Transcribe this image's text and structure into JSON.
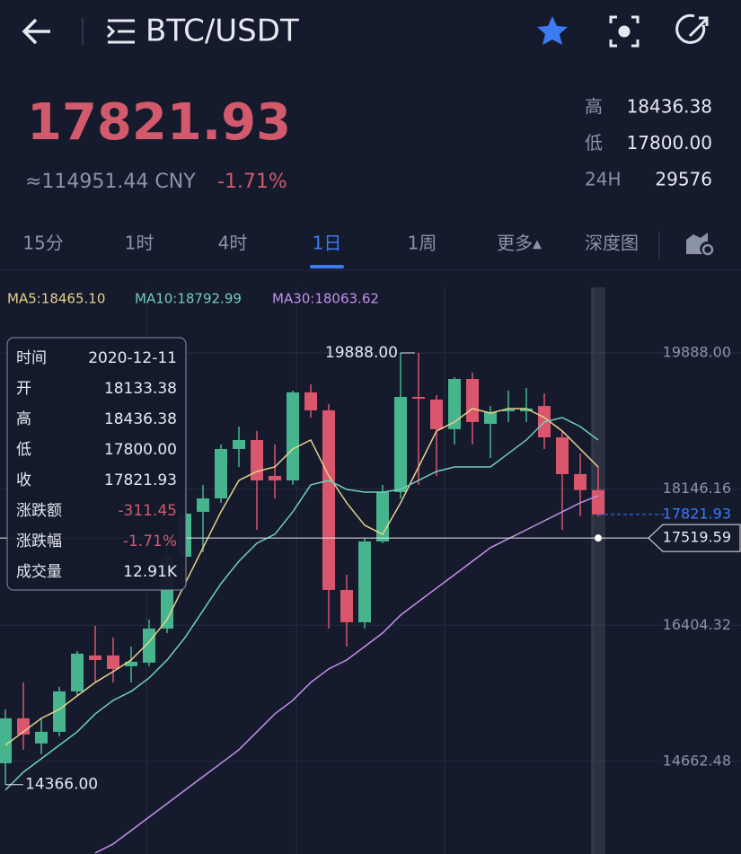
{
  "header": {
    "title": "BTC/USDT"
  },
  "price": {
    "last": "17821.93",
    "cny": "≈114951.44 CNY",
    "change": "-1.71%"
  },
  "stats": [
    {
      "label": "高",
      "value": "18436.38"
    },
    {
      "label": "低",
      "value": "17800.00"
    },
    {
      "label": "24H",
      "value": "29576"
    }
  ],
  "tabs": {
    "items": [
      "15分",
      "1时",
      "4时",
      "1日",
      "1周",
      "更多▴",
      "深度图"
    ],
    "active": 3
  },
  "tooltip": {
    "rows": [
      [
        "时间",
        "2020-12-11"
      ],
      [
        "开",
        "18133.38"
      ],
      [
        "高",
        "18436.38"
      ],
      [
        "低",
        "17800.00"
      ],
      [
        "收",
        "17821.93"
      ],
      [
        "涨跌额",
        "-311.45"
      ],
      [
        "涨跌幅",
        "-1.71%"
      ],
      [
        "成交量",
        "12.91K"
      ]
    ]
  },
  "chart_data": {
    "type": "candlestick",
    "up_color": "#46b58d",
    "down_color": "#d9566c",
    "ylim": [
      13478,
      20784
    ],
    "yticks": [
      {
        "value": 19888,
        "label": "19888.00"
      },
      {
        "value": 18146.16,
        "label": "18146.16"
      },
      {
        "value": 16404.32,
        "label": "16404.32"
      },
      {
        "value": 14662.48,
        "label": "14662.48"
      }
    ],
    "grid": true,
    "open": [
      14639,
      15214,
      14892,
      15041,
      15558,
      16018,
      16018,
      15880,
      15926,
      16362,
      17281,
      17855,
      18027,
      18659,
      18774,
      18315,
      18257,
      19383,
      19153,
      16856,
      16442,
      17476,
      18108,
      19325,
      19291,
      18912,
      19555,
      18981,
      19141,
      19141,
      19210,
      18808,
      18338,
      18133.38
    ],
    "high": [
      15328,
      15673,
      15214,
      15616,
      16075,
      16397,
      16247,
      16132,
      16477,
      17396,
      18200,
      18200,
      18717,
      18946,
      18889,
      18717,
      19406,
      19486,
      19233,
      17051,
      17511,
      18200,
      19888,
      19888,
      19348,
      19578,
      19635,
      19210,
      19406,
      19440,
      19371,
      18889,
      18602,
      18436.38
    ],
    "low": [
      14366,
      14812,
      14754,
      14984,
      15501,
      15673,
      15673,
      15673,
      15880,
      16305,
      17223,
      17338,
      17970,
      18429,
      17625,
      18027,
      18200,
      19061,
      16362,
      16132,
      16362,
      17453,
      18027,
      18200,
      18315,
      18717,
      18717,
      18544,
      19004,
      19004,
      18659,
      17625,
      17798,
      17800
    ],
    "close": [
      15214,
      15007,
      15041,
      15558,
      16041,
      15960,
      15845,
      15937,
      16362,
      17281,
      17832,
      18027,
      18659,
      18774,
      18257,
      18257,
      19383,
      19153,
      16856,
      16442,
      17476,
      18108,
      19325,
      19302,
      18912,
      19555,
      19004,
      19130,
      19164,
      19176,
      18808,
      18338,
      18133,
      17821.93
    ],
    "series": [
      {
        "name": "MA5:18465.10",
        "color": "#e6d28c",
        "values": [
          14869,
          15041,
          15214,
          15328,
          15501,
          15673,
          15811,
          15960,
          16190,
          16477,
          16936,
          17396,
          17855,
          18257,
          18372,
          18429,
          18659,
          18774,
          18315,
          17970,
          17683,
          17568,
          17970,
          18429,
          18889,
          19004,
          19176,
          19119,
          19176,
          19176,
          19061,
          18889,
          18659,
          18429
        ]
      },
      {
        "name": "MA10:18792.99",
        "color": "#6fcfbf",
        "values": [
          14295,
          14525,
          14697,
          14869,
          15041,
          15271,
          15443,
          15558,
          15730,
          15960,
          16247,
          16592,
          16936,
          17223,
          17453,
          17568,
          17855,
          18200,
          18257,
          18142,
          18108,
          18108,
          18142,
          18257,
          18372,
          18429,
          18429,
          18429,
          18602,
          18774,
          19004,
          19061,
          18946,
          18774
        ]
      },
      {
        "name": "MA30:18063.62",
        "color": "#c391ea",
        "values": [
          null,
          null,
          null,
          null,
          null,
          13491,
          13606,
          13778,
          13950,
          14123,
          14295,
          14467,
          14639,
          14812,
          15041,
          15271,
          15443,
          15673,
          15845,
          15960,
          16132,
          16305,
          16534,
          16707,
          16879,
          17051,
          17223,
          17396,
          17511,
          17625,
          17740,
          17855,
          17970,
          18062
        ]
      }
    ],
    "annotations": {
      "max": {
        "value": 19888,
        "label": "19888.00"
      },
      "min": {
        "value": 14366,
        "label": "14366.00"
      },
      "last": {
        "value": 17821.93,
        "label": "17821.93"
      },
      "crosshair": {
        "value": 17519.59,
        "label": "17519.59"
      }
    }
  }
}
